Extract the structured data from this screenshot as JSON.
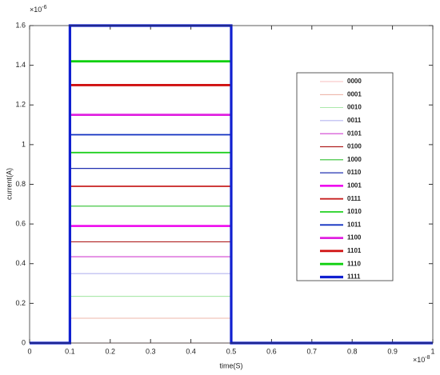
{
  "chart_data": {
    "type": "line",
    "xlabel": "time(S)",
    "ylabel": "current(A)",
    "x_exponent": {
      "base": "×10",
      "power": "-8"
    },
    "y_exponent": {
      "base": "×10",
      "power": "-6"
    },
    "x": [
      0,
      0.1,
      0.1,
      0.5,
      0.5,
      1
    ],
    "xlim": [
      0,
      1
    ],
    "xticks": [
      0,
      0.1,
      0.2,
      0.3,
      0.4,
      0.5,
      0.6,
      0.7,
      0.8,
      0.9,
      1
    ],
    "ylim": [
      0,
      1.6
    ],
    "yticks": [
      0,
      0.2,
      0.4,
      0.6,
      0.8,
      1,
      1.2,
      1.4,
      1.6
    ],
    "grid": false,
    "legend": "right",
    "series": [
      {
        "name": "0000",
        "color": "#f4a6a6",
        "width": 0.8,
        "values": [
          0,
          0,
          0,
          0,
          0,
          0
        ]
      },
      {
        "name": "0001",
        "color": "#e8a090",
        "width": 0.8,
        "values": [
          0,
          0,
          0.125,
          0.125,
          0,
          0
        ]
      },
      {
        "name": "0010",
        "color": "#8fe08f",
        "width": 0.8,
        "values": [
          0,
          0,
          0.235,
          0.235,
          0,
          0
        ]
      },
      {
        "name": "0011",
        "color": "#9090e8",
        "width": 0.8,
        "values": [
          0,
          0,
          0.35,
          0.35,
          0,
          0
        ]
      },
      {
        "name": "0101",
        "color": "#d040d0",
        "width": 1.2,
        "values": [
          0,
          0,
          0.435,
          0.435,
          0,
          0
        ]
      },
      {
        "name": "0100",
        "color": "#b02020",
        "width": 1.2,
        "values": [
          0,
          0,
          0.51,
          0.51,
          0,
          0
        ]
      },
      {
        "name": "1000",
        "color": "#30c030",
        "width": 1.2,
        "values": [
          0,
          0,
          0.69,
          0.69,
          0,
          0
        ]
      },
      {
        "name": "0110",
        "color": "#2030b0",
        "width": 1.2,
        "values": [
          0,
          0,
          0.88,
          0.88,
          0,
          0
        ]
      },
      {
        "name": "1001",
        "color": "#ee00ee",
        "width": 2.5,
        "values": [
          0,
          0,
          0.59,
          0.59,
          0,
          0
        ]
      },
      {
        "name": "0111",
        "color": "#c82020",
        "width": 1.8,
        "values": [
          0,
          0,
          0.79,
          0.79,
          0,
          0
        ]
      },
      {
        "name": "1010",
        "color": "#20d020",
        "width": 1.8,
        "values": [
          0,
          0,
          0.96,
          0.96,
          0,
          0
        ]
      },
      {
        "name": "1011",
        "color": "#1030c0",
        "width": 1.8,
        "values": [
          0,
          0,
          1.05,
          1.05,
          0,
          0
        ]
      },
      {
        "name": "1100",
        "color": "#e020e0",
        "width": 2.8,
        "values": [
          0,
          0,
          1.15,
          1.15,
          0,
          0
        ]
      },
      {
        "name": "1101",
        "color": "#d01010",
        "width": 2.8,
        "values": [
          0,
          0,
          1.3,
          1.3,
          0,
          0
        ]
      },
      {
        "name": "1110",
        "color": "#10d010",
        "width": 2.8,
        "values": [
          0,
          0,
          1.42,
          1.42,
          0,
          0
        ]
      },
      {
        "name": "1111",
        "color": "#1020d0",
        "width": 3.2,
        "values": [
          0,
          0,
          1.6,
          1.6,
          0,
          0
        ]
      }
    ]
  }
}
